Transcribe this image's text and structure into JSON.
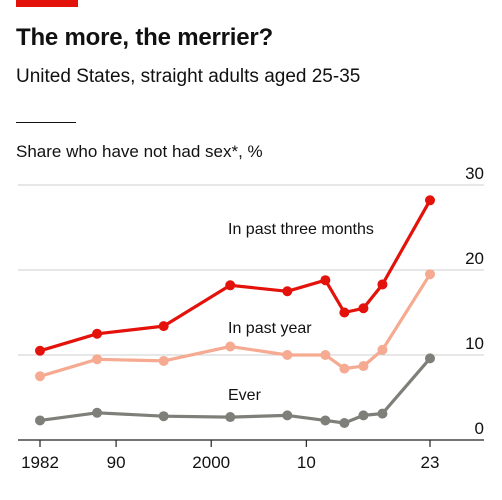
{
  "header": {
    "title": "The more, the merrier?",
    "subtitle": "United States, straight adults aged 25-35",
    "measure": "Share who have not had sex*, %"
  },
  "colors": {
    "accent": "#e3120b",
    "past_three_months": "#e3120b",
    "past_year": "#f5aa91",
    "ever": "#7f7f7a"
  },
  "chart_data": {
    "type": "line",
    "title": "The more, the merrier?",
    "subtitle": "United States, straight adults aged 25-35",
    "ylabel": "Share who have not had sex*, %",
    "ylim": [
      0,
      30
    ],
    "yticks": [
      0,
      10,
      20,
      30
    ],
    "xlim": [
      1982,
      2023
    ],
    "xticks": [
      {
        "value": 1982,
        "label": "1982"
      },
      {
        "value": 1990,
        "label": "90"
      },
      {
        "value": 2000,
        "label": "2000"
      },
      {
        "value": 2010,
        "label": "10"
      },
      {
        "value": 2023,
        "label": "23"
      }
    ],
    "grid": true,
    "series": [
      {
        "name": "In past three months",
        "color": "#e3120b",
        "x": [
          1982,
          1988,
          1995,
          2002,
          2008,
          2012,
          2014,
          2016,
          2018,
          2023
        ],
        "values": [
          10.5,
          12.5,
          13.4,
          18.2,
          17.5,
          18.8,
          15.0,
          15.5,
          18.3,
          28.2
        ]
      },
      {
        "name": "In past year",
        "color": "#f5aa91",
        "x": [
          1982,
          1988,
          1995,
          2002,
          2008,
          2012,
          2014,
          2016,
          2018,
          2023
        ],
        "values": [
          7.5,
          9.5,
          9.3,
          11.0,
          10.0,
          10.0,
          8.4,
          8.7,
          10.6,
          19.5
        ]
      },
      {
        "name": "Ever",
        "color": "#7f7f7a",
        "x": [
          1982,
          1988,
          1995,
          2002,
          2008,
          2012,
          2014,
          2016,
          2018,
          2023
        ],
        "values": [
          2.3,
          3.2,
          2.8,
          2.7,
          2.9,
          2.3,
          2.0,
          2.9,
          3.1,
          9.6
        ]
      }
    ]
  }
}
